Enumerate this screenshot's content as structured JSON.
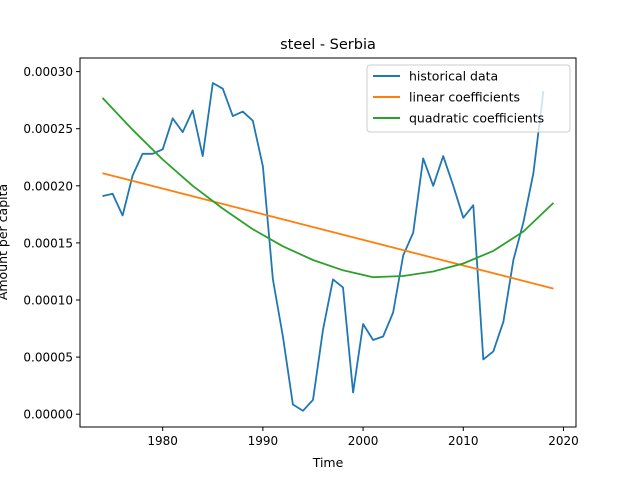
{
  "chart_data": {
    "type": "line",
    "title": "steel - Serbia",
    "xlabel": "Time",
    "ylabel": "Amount per capita",
    "xlim": [
      1971.75,
      2021.25
    ],
    "ylim": [
      -1.12e-05,
      0.0003119
    ],
    "x_ticks": [
      1980,
      1990,
      2000,
      2010,
      2020
    ],
    "y_ticks": [
      0.0,
      5e-05,
      0.0001,
      0.00015,
      0.0002,
      0.00025,
      0.0003
    ],
    "y_tick_labels": [
      "0.00000",
      "0.00005",
      "0.00010",
      "0.00015",
      "0.00020",
      "0.00025",
      "0.00030"
    ],
    "legend_position": "top-right",
    "grid": false,
    "series": [
      {
        "name": "historical data",
        "color": "#1f77b4",
        "x": [
          1974,
          1975,
          1976,
          1977,
          1978,
          1979,
          1980,
          1981,
          1982,
          1983,
          1984,
          1985,
          1986,
          1987,
          1988,
          1989,
          1990,
          1991,
          1992,
          1993,
          1994,
          1995,
          1996,
          1997,
          1998,
          1999,
          2000,
          2001,
          2002,
          2003,
          2004,
          2005,
          2006,
          2007,
          2008,
          2009,
          2010,
          2011,
          2012,
          2013,
          2014,
          2015,
          2016,
          2017,
          2018
        ],
        "y": [
          0.000191,
          0.000193,
          0.000174,
          0.000209,
          0.000228,
          0.000228,
          0.000232,
          0.000259,
          0.000247,
          0.000266,
          0.000226,
          0.00029,
          0.000285,
          0.000261,
          0.000265,
          0.000257,
          0.000217,
          0.000118,
          6.8e-05,
          8.5e-06,
          3e-06,
          1.25e-05,
          7.4e-05,
          0.000118,
          0.000111,
          1.9e-05,
          7.9e-05,
          6.5e-05,
          6.8e-05,
          8.9e-05,
          0.000139,
          0.000159,
          0.000224,
          0.0002,
          0.000226,
          0.0002,
          0.000172,
          0.000183,
          4.8e-05,
          5.5e-05,
          8.1e-05,
          0.000135,
          0.000168,
          0.000211,
          0.000283
        ]
      },
      {
        "name": "linear coefficients",
        "color": "#ff7f0e",
        "x": [
          1974,
          2019
        ],
        "y": [
          0.000211,
          0.00011
        ]
      },
      {
        "name": "quadratic coefficients",
        "color": "#2ca02c",
        "x": [
          1974,
          1977,
          1980,
          1983,
          1986,
          1989,
          1992,
          1995,
          1998,
          2001,
          2004,
          2007,
          2010,
          2013,
          2016,
          2019
        ],
        "y": [
          0.000277,
          0.000249,
          0.000223,
          0.0002,
          0.00018,
          0.000162,
          0.000147,
          0.000135,
          0.000126,
          0.00012,
          0.000121,
          0.000125,
          0.000132,
          0.000143,
          0.00016,
          0.000185
        ]
      }
    ]
  }
}
